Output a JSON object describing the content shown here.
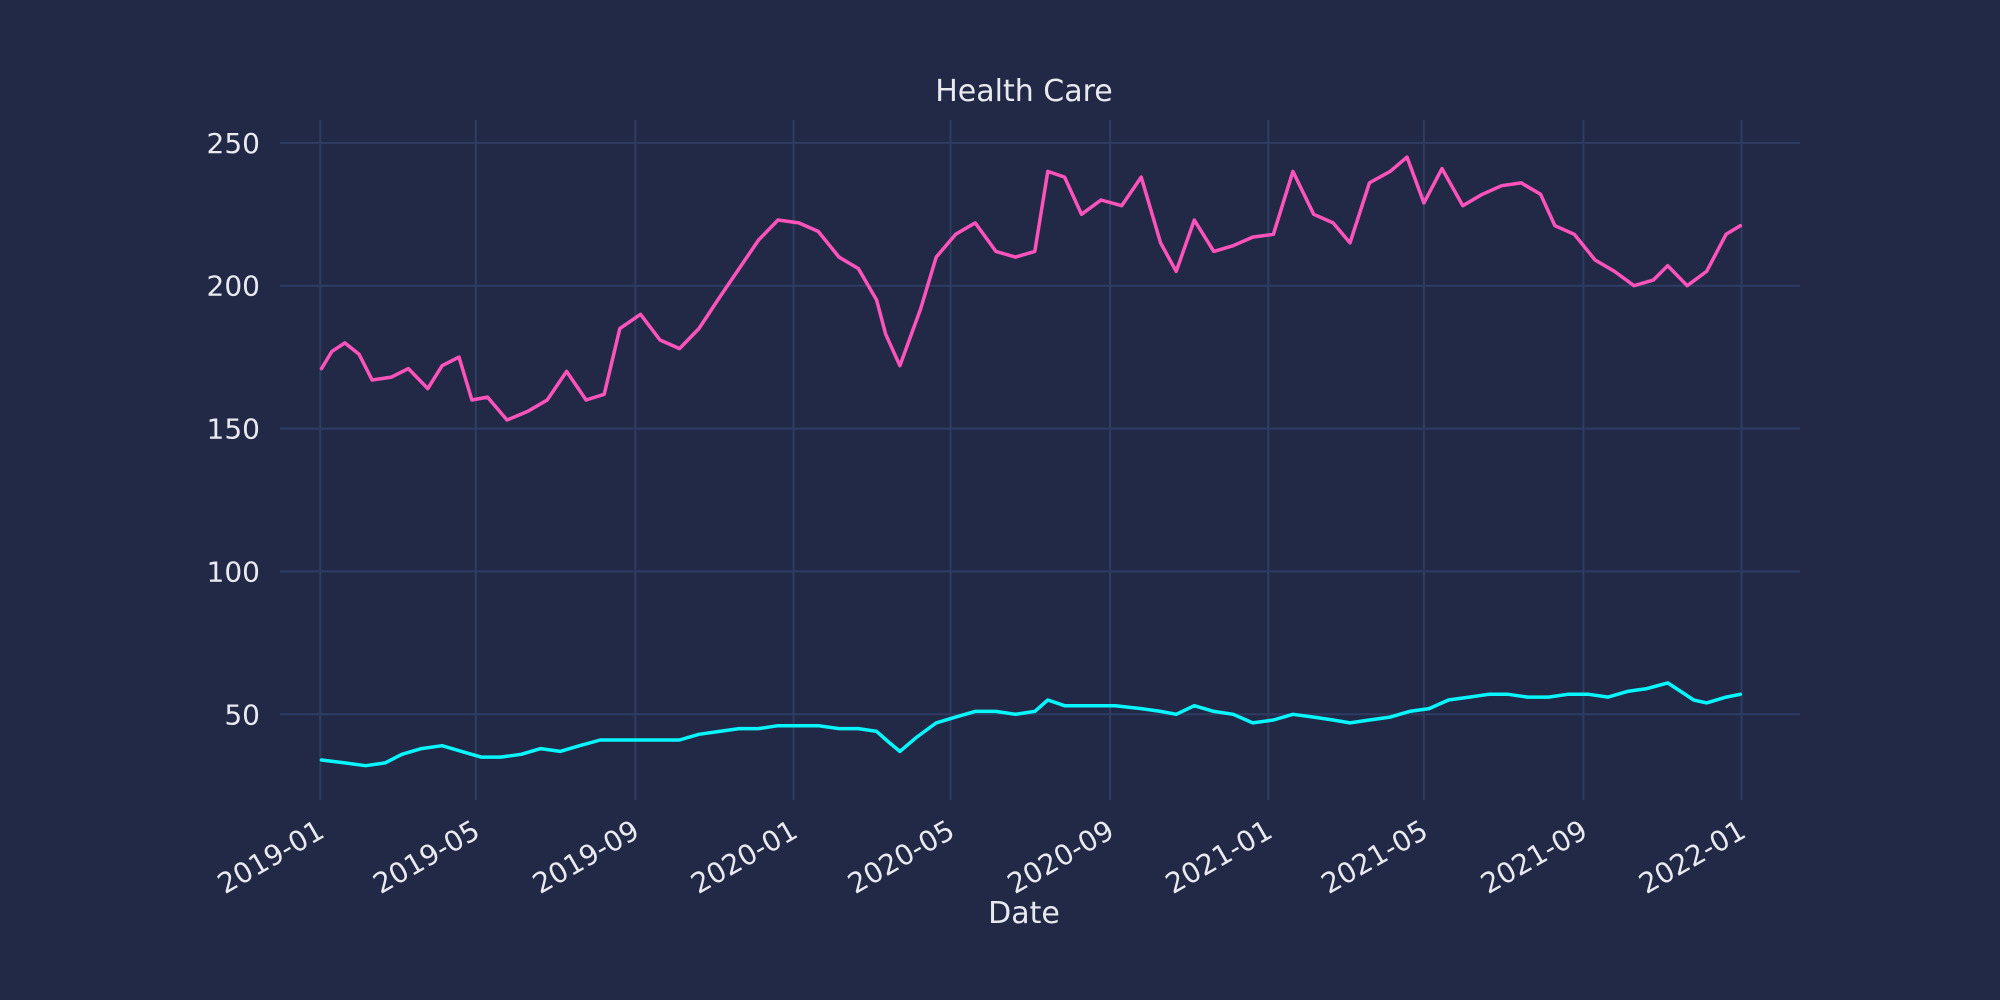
{
  "chart_data": {
    "type": "line",
    "title": "Health Care",
    "xlabel": "Date",
    "ylabel": "",
    "x_type": "date",
    "xlim": [
      "2018-12-01",
      "2022-02-15"
    ],
    "ylim": [
      20,
      258
    ],
    "x_ticks": [
      "2019-01",
      "2019-05",
      "2019-09",
      "2020-01",
      "2020-05",
      "2020-09",
      "2021-01",
      "2021-05",
      "2021-09",
      "2022-01"
    ],
    "y_ticks": [
      50,
      100,
      150,
      200,
      250
    ],
    "grid": true,
    "legend": false,
    "series": [
      {
        "color": "#fe53bb",
        "points": [
          [
            "2019-01-02",
            171
          ],
          [
            "2019-01-10",
            177
          ],
          [
            "2019-01-20",
            180
          ],
          [
            "2019-01-31",
            176
          ],
          [
            "2019-02-10",
            167
          ],
          [
            "2019-02-25",
            168
          ],
          [
            "2019-03-10",
            171
          ],
          [
            "2019-03-25",
            164
          ],
          [
            "2019-04-05",
            172
          ],
          [
            "2019-04-18",
            175
          ],
          [
            "2019-04-28",
            160
          ],
          [
            "2019-05-10",
            161
          ],
          [
            "2019-05-25",
            153
          ],
          [
            "2019-06-10",
            156
          ],
          [
            "2019-06-25",
            160
          ],
          [
            "2019-07-10",
            170
          ],
          [
            "2019-07-25",
            160
          ],
          [
            "2019-08-08",
            162
          ],
          [
            "2019-08-20",
            185
          ],
          [
            "2019-09-05",
            190
          ],
          [
            "2019-09-20",
            181
          ],
          [
            "2019-10-05",
            178
          ],
          [
            "2019-10-20",
            185
          ],
          [
            "2019-11-05",
            196
          ],
          [
            "2019-11-20",
            206
          ],
          [
            "2019-12-05",
            216
          ],
          [
            "2019-12-20",
            223
          ],
          [
            "2020-01-05",
            222
          ],
          [
            "2020-01-20",
            219
          ],
          [
            "2020-02-05",
            210
          ],
          [
            "2020-02-20",
            206
          ],
          [
            "2020-03-05",
            195
          ],
          [
            "2020-03-12",
            183
          ],
          [
            "2020-03-23",
            172
          ],
          [
            "2020-04-08",
            192
          ],
          [
            "2020-04-20",
            210
          ],
          [
            "2020-05-05",
            218
          ],
          [
            "2020-05-20",
            222
          ],
          [
            "2020-06-05",
            212
          ],
          [
            "2020-06-20",
            210
          ],
          [
            "2020-07-05",
            212
          ],
          [
            "2020-07-15",
            240
          ],
          [
            "2020-07-28",
            238
          ],
          [
            "2020-08-10",
            225
          ],
          [
            "2020-08-25",
            230
          ],
          [
            "2020-09-10",
            228
          ],
          [
            "2020-09-25",
            238
          ],
          [
            "2020-10-10",
            215
          ],
          [
            "2020-10-22",
            205
          ],
          [
            "2020-11-05",
            223
          ],
          [
            "2020-11-20",
            212
          ],
          [
            "2020-12-05",
            214
          ],
          [
            "2020-12-20",
            217
          ],
          [
            "2021-01-05",
            218
          ],
          [
            "2021-01-20",
            240
          ],
          [
            "2021-02-05",
            225
          ],
          [
            "2021-02-20",
            222
          ],
          [
            "2021-03-05",
            215
          ],
          [
            "2021-03-20",
            236
          ],
          [
            "2021-04-05",
            240
          ],
          [
            "2021-04-18",
            245
          ],
          [
            "2021-05-01",
            229
          ],
          [
            "2021-05-15",
            241
          ],
          [
            "2021-05-31",
            228
          ],
          [
            "2021-06-15",
            232
          ],
          [
            "2021-06-30",
            235
          ],
          [
            "2021-07-15",
            236
          ],
          [
            "2021-07-30",
            232
          ],
          [
            "2021-08-10",
            221
          ],
          [
            "2021-08-25",
            218
          ],
          [
            "2021-09-10",
            209
          ],
          [
            "2021-09-25",
            205
          ],
          [
            "2021-10-10",
            200
          ],
          [
            "2021-10-25",
            202
          ],
          [
            "2021-11-05",
            207
          ],
          [
            "2021-11-20",
            200
          ],
          [
            "2021-12-05",
            205
          ],
          [
            "2021-12-20",
            218
          ],
          [
            "2021-12-31",
            221
          ]
        ]
      },
      {
        "color": "#08f7fe",
        "points": [
          [
            "2019-01-02",
            34
          ],
          [
            "2019-01-20",
            33
          ],
          [
            "2019-02-05",
            32
          ],
          [
            "2019-02-20",
            33
          ],
          [
            "2019-03-05",
            36
          ],
          [
            "2019-03-20",
            38
          ],
          [
            "2019-04-05",
            39
          ],
          [
            "2019-04-20",
            37
          ],
          [
            "2019-05-05",
            35
          ],
          [
            "2019-05-20",
            35
          ],
          [
            "2019-06-05",
            36
          ],
          [
            "2019-06-20",
            38
          ],
          [
            "2019-07-05",
            37
          ],
          [
            "2019-07-20",
            39
          ],
          [
            "2019-08-05",
            41
          ],
          [
            "2019-08-20",
            41
          ],
          [
            "2019-09-05",
            41
          ],
          [
            "2019-09-20",
            41
          ],
          [
            "2019-10-05",
            41
          ],
          [
            "2019-10-20",
            43
          ],
          [
            "2019-11-05",
            44
          ],
          [
            "2019-11-20",
            45
          ],
          [
            "2019-12-05",
            45
          ],
          [
            "2019-12-20",
            46
          ],
          [
            "2020-01-05",
            46
          ],
          [
            "2020-01-20",
            46
          ],
          [
            "2020-02-05",
            45
          ],
          [
            "2020-02-20",
            45
          ],
          [
            "2020-03-05",
            44
          ],
          [
            "2020-03-15",
            40
          ],
          [
            "2020-03-23",
            37
          ],
          [
            "2020-04-05",
            42
          ],
          [
            "2020-04-20",
            47
          ],
          [
            "2020-05-05",
            49
          ],
          [
            "2020-05-20",
            51
          ],
          [
            "2020-06-05",
            51
          ],
          [
            "2020-06-20",
            50
          ],
          [
            "2020-07-05",
            51
          ],
          [
            "2020-07-15",
            55
          ],
          [
            "2020-07-28",
            53
          ],
          [
            "2020-08-15",
            53
          ],
          [
            "2020-09-05",
            53
          ],
          [
            "2020-09-25",
            52
          ],
          [
            "2020-10-10",
            51
          ],
          [
            "2020-10-22",
            50
          ],
          [
            "2020-11-05",
            53
          ],
          [
            "2020-11-20",
            51
          ],
          [
            "2020-12-05",
            50
          ],
          [
            "2020-12-20",
            47
          ],
          [
            "2021-01-05",
            48
          ],
          [
            "2021-01-20",
            50
          ],
          [
            "2021-02-05",
            49
          ],
          [
            "2021-02-20",
            48
          ],
          [
            "2021-03-05",
            47
          ],
          [
            "2021-03-20",
            48
          ],
          [
            "2021-04-05",
            49
          ],
          [
            "2021-04-20",
            51
          ],
          [
            "2021-05-05",
            52
          ],
          [
            "2021-05-20",
            55
          ],
          [
            "2021-06-05",
            56
          ],
          [
            "2021-06-20",
            57
          ],
          [
            "2021-07-05",
            57
          ],
          [
            "2021-07-20",
            56
          ],
          [
            "2021-08-05",
            56
          ],
          [
            "2021-08-20",
            57
          ],
          [
            "2021-09-05",
            57
          ],
          [
            "2021-09-20",
            56
          ],
          [
            "2021-10-05",
            58
          ],
          [
            "2021-10-20",
            59
          ],
          [
            "2021-11-05",
            61
          ],
          [
            "2021-11-15",
            58
          ],
          [
            "2021-11-25",
            55
          ],
          [
            "2021-12-05",
            54
          ],
          [
            "2021-12-20",
            56
          ],
          [
            "2021-12-31",
            57
          ]
        ]
      }
    ]
  }
}
